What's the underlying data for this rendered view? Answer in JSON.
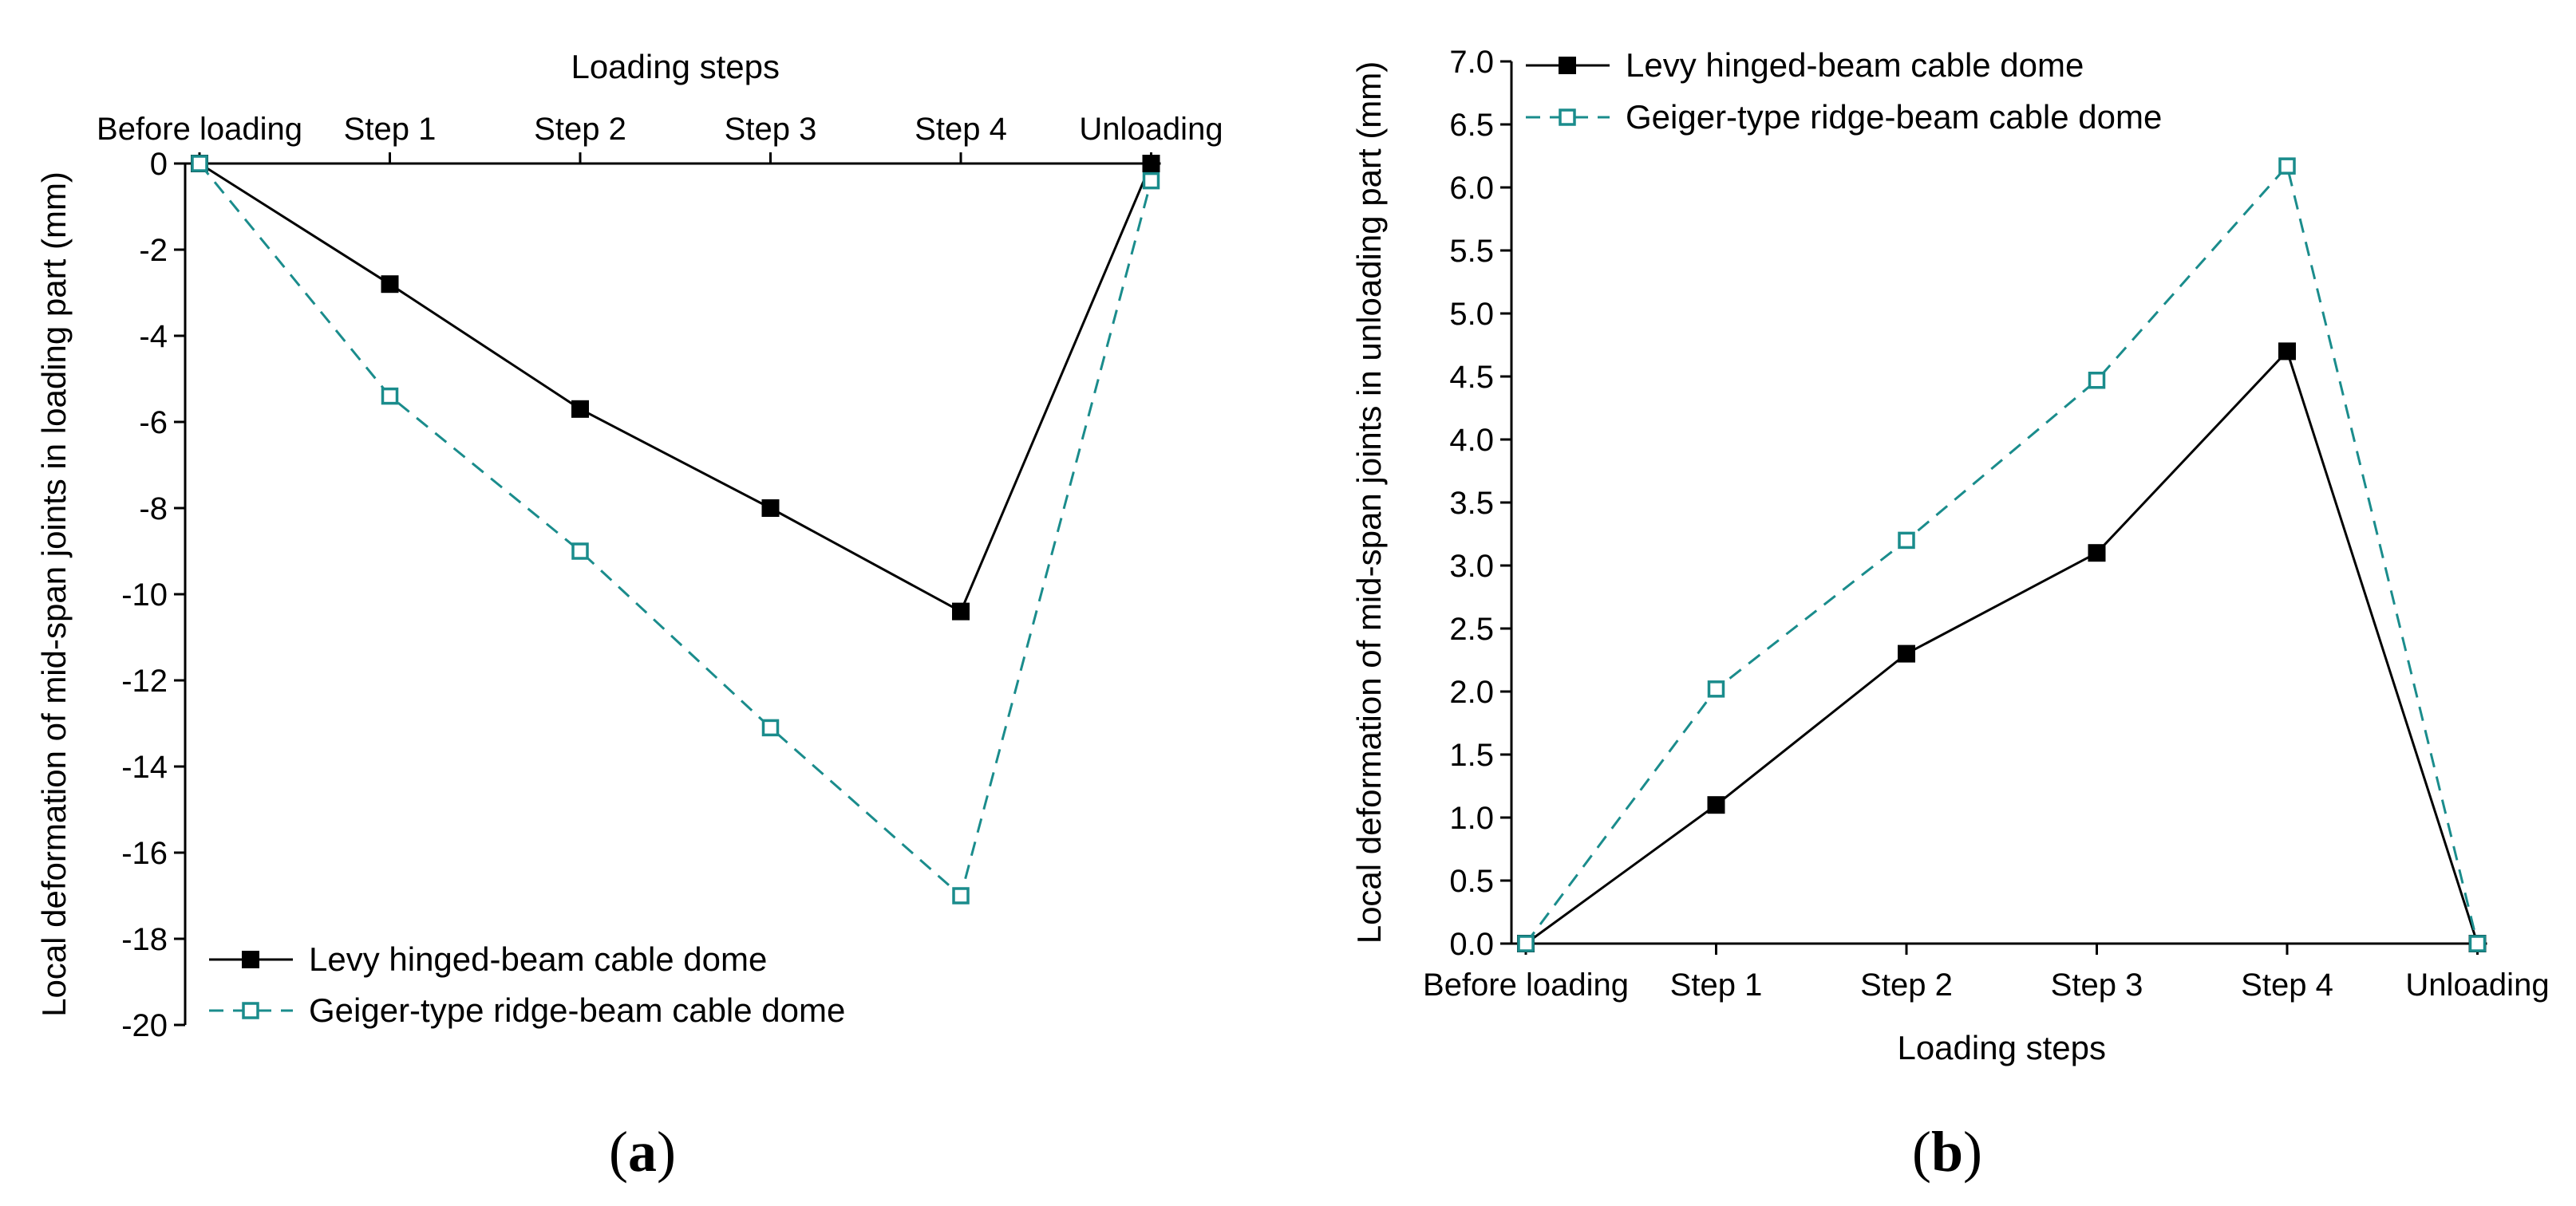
{
  "chart_data": [
    {
      "type": "line",
      "panel_label": "(a)",
      "panel_letter": "a",
      "title": "",
      "xlabel": "Loading steps",
      "ylabel": "Local deformation of mid-span joints in loading part (mm)",
      "x_axis_position": "top",
      "categories": [
        "Before loading",
        "Step 1",
        "Step 2",
        "Step 3",
        "Step 4",
        "Unloading"
      ],
      "ylim": [
        -20,
        0
      ],
      "yticks": [
        0,
        -2,
        -4,
        -6,
        -8,
        -10,
        -12,
        -14,
        -16,
        -18,
        -20
      ],
      "ytick_labels": [
        "0",
        "-2",
        "-4",
        "-6",
        "-8",
        "-10",
        "-12",
        "-14",
        "-16",
        "-18",
        "-20"
      ],
      "legend_position": "bottom-left",
      "series": [
        {
          "name": "Levy hinged-beam cable dome",
          "values": [
            0,
            -2.8,
            -5.7,
            -8.0,
            -10.4,
            0
          ],
          "color": "#000000",
          "marker": "filled-square",
          "line": "solid"
        },
        {
          "name": "Geiger-type ridge-beam cable dome",
          "values": [
            0,
            -5.4,
            -9.0,
            -13.1,
            -17.0,
            -0.4
          ],
          "color": "#1a8c8c",
          "marker": "open-square",
          "line": "dashed"
        }
      ]
    },
    {
      "type": "line",
      "panel_label": "(b)",
      "panel_letter": "b",
      "title": "",
      "xlabel": "Loading steps",
      "ylabel": "Local deformation of mid-span joints in unloading part (mm)",
      "x_axis_position": "bottom",
      "categories": [
        "Before loading",
        "Step 1",
        "Step 2",
        "Step 3",
        "Step 4",
        "Unloading"
      ],
      "ylim": [
        0,
        7
      ],
      "yticks": [
        0,
        0.5,
        1,
        1.5,
        2,
        2.5,
        3,
        3.5,
        4,
        4.5,
        5,
        5.5,
        6,
        6.5,
        7
      ],
      "ytick_labels": [
        "0.0",
        "0.5",
        "1.0",
        "1.5",
        "2.0",
        "2.5",
        "3.0",
        "3.5",
        "4.0",
        "4.5",
        "5.0",
        "5.5",
        "6.0",
        "6.5",
        "7.0"
      ],
      "legend_position": "top-left",
      "series": [
        {
          "name": "Levy hinged-beam cable dome",
          "values": [
            0,
            1.1,
            2.3,
            3.1,
            4.7,
            0
          ],
          "color": "#000000",
          "marker": "filled-square",
          "line": "solid"
        },
        {
          "name": "Geiger-type ridge-beam cable dome",
          "values": [
            0,
            2.02,
            3.2,
            4.47,
            6.17,
            0
          ],
          "color": "#1a8c8c",
          "marker": "open-square",
          "line": "dashed"
        }
      ]
    }
  ]
}
